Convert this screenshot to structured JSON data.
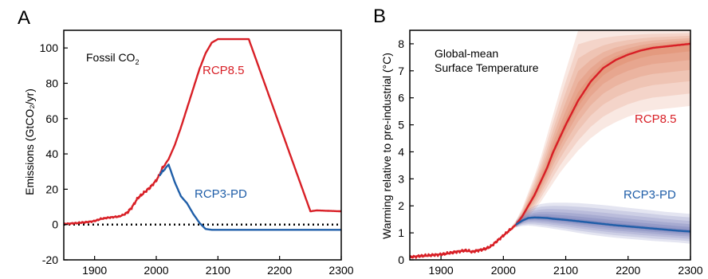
{
  "colors": {
    "red": "#d81f26",
    "blue": "#1f5ea8",
    "red_band": "#d9704a",
    "blue_band": "#5560a6"
  },
  "chart_data": [
    {
      "panel": "A",
      "type": "line",
      "title": "",
      "annotation": {
        "main": "Fossil CO",
        "sub": "2"
      },
      "xlabel": "",
      "ylabel": "Emissions (GtCO₂/yr)",
      "xlim": [
        1850,
        2300
      ],
      "ylim": [
        -20,
        110
      ],
      "xticks": [
        1900,
        2000,
        2100,
        2200,
        2300
      ],
      "yticks": [
        -20,
        0,
        20,
        40,
        60,
        80,
        100
      ],
      "zero_line": {
        "y": 0,
        "style": "dotted"
      },
      "series": [
        {
          "name": "RCP8.5",
          "color": "#d81f26",
          "x": [
            1850,
            1870,
            1890,
            1900,
            1910,
            1920,
            1930,
            1940,
            1950,
            1955,
            1960,
            1970,
            1980,
            1985,
            1990,
            2000,
            2005,
            2010,
            2020,
            2030,
            2040,
            2050,
            2060,
            2070,
            2080,
            2090,
            2100,
            2150,
            2250,
            2260,
            2300
          ],
          "y": [
            0.3,
            0.8,
            1.5,
            2.0,
            3.2,
            3.8,
            4.2,
            4.6,
            6.0,
            7.5,
            9.5,
            15,
            18,
            19.5,
            21,
            25,
            28,
            32,
            37,
            45,
            55,
            66,
            77,
            88,
            97,
            103,
            105,
            105,
            7.5,
            8,
            7.5
          ]
        },
        {
          "name": "RCP3-PD",
          "color": "#1f5ea8",
          "x": [
            2005,
            2010,
            2020,
            2030,
            2040,
            2050,
            2060,
            2070,
            2080,
            2090,
            2300
          ],
          "y": [
            28,
            30,
            34,
            24,
            16,
            12,
            6,
            1,
            -2.5,
            -3,
            -3
          ]
        }
      ]
    },
    {
      "panel": "B",
      "type": "line",
      "title": "",
      "annotation": {
        "line1": "Global-mean",
        "line2": "Surface Temperature"
      },
      "xlabel": "",
      "ylabel": "Warming relative to pre-industrial (°C)",
      "xlim": [
        1850,
        2300
      ],
      "ylim": [
        0,
        8.5
      ],
      "xticks": [
        1900,
        2000,
        2100,
        2200,
        2300
      ],
      "yticks": [
        0,
        1,
        2,
        3,
        4,
        5,
        6,
        7,
        8
      ],
      "series": [
        {
          "name": "RCP8.5",
          "color": "#d81f26",
          "x": [
            1850,
            1870,
            1900,
            1920,
            1940,
            1950,
            1960,
            1970,
            1980,
            1990,
            2000,
            2010,
            2020,
            2030,
            2040,
            2050,
            2060,
            2070,
            2080,
            2090,
            2100,
            2120,
            2140,
            2160,
            2180,
            2200,
            2220,
            2240,
            2260,
            2280,
            2300
          ],
          "y": [
            0.1,
            0.15,
            0.2,
            0.28,
            0.35,
            0.3,
            0.35,
            0.4,
            0.5,
            0.7,
            0.9,
            1.1,
            1.3,
            1.6,
            2.0,
            2.4,
            2.9,
            3.4,
            4.0,
            4.5,
            5.0,
            5.9,
            6.6,
            7.1,
            7.4,
            7.6,
            7.75,
            7.85,
            7.9,
            7.95,
            8.0
          ],
          "band_low": [
            0.1,
            0.15,
            0.2,
            0.28,
            0.35,
            0.3,
            0.35,
            0.4,
            0.5,
            0.7,
            0.9,
            1.05,
            1.2,
            1.35,
            1.6,
            1.85,
            2.15,
            2.5,
            2.85,
            3.2,
            3.5,
            4.05,
            4.5,
            4.85,
            5.1,
            5.3,
            5.45,
            5.55,
            5.6,
            5.65,
            5.7
          ],
          "band_high": [
            0.1,
            0.15,
            0.2,
            0.28,
            0.35,
            0.3,
            0.35,
            0.4,
            0.5,
            0.7,
            0.9,
            1.15,
            1.45,
            1.9,
            2.5,
            3.1,
            3.8,
            4.6,
            5.4,
            6.2,
            7.0,
            8.5,
            8.5,
            8.5,
            8.5,
            8.5,
            8.5,
            8.5,
            8.5,
            8.5,
            8.5
          ]
        },
        {
          "name": "RCP3-PD",
          "color": "#1f5ea8",
          "x": [
            2020,
            2030,
            2040,
            2050,
            2060,
            2070,
            2080,
            2100,
            2120,
            2140,
            2160,
            2180,
            2200,
            2220,
            2240,
            2260,
            2280,
            2300
          ],
          "y": [
            1.3,
            1.45,
            1.55,
            1.57,
            1.56,
            1.55,
            1.52,
            1.48,
            1.43,
            1.38,
            1.33,
            1.28,
            1.24,
            1.2,
            1.16,
            1.12,
            1.08,
            1.05
          ],
          "band_low": [
            1.2,
            1.25,
            1.27,
            1.25,
            1.22,
            1.19,
            1.15,
            1.08,
            1.0,
            0.93,
            0.87,
            0.82,
            0.78,
            0.74,
            0.7,
            0.67,
            0.64,
            0.6
          ],
          "band_high": [
            1.45,
            1.7,
            1.88,
            2.0,
            2.07,
            2.1,
            2.12,
            2.12,
            2.1,
            2.07,
            2.03,
            1.98,
            1.93,
            1.88,
            1.83,
            1.78,
            1.74,
            1.7
          ]
        }
      ]
    }
  ]
}
